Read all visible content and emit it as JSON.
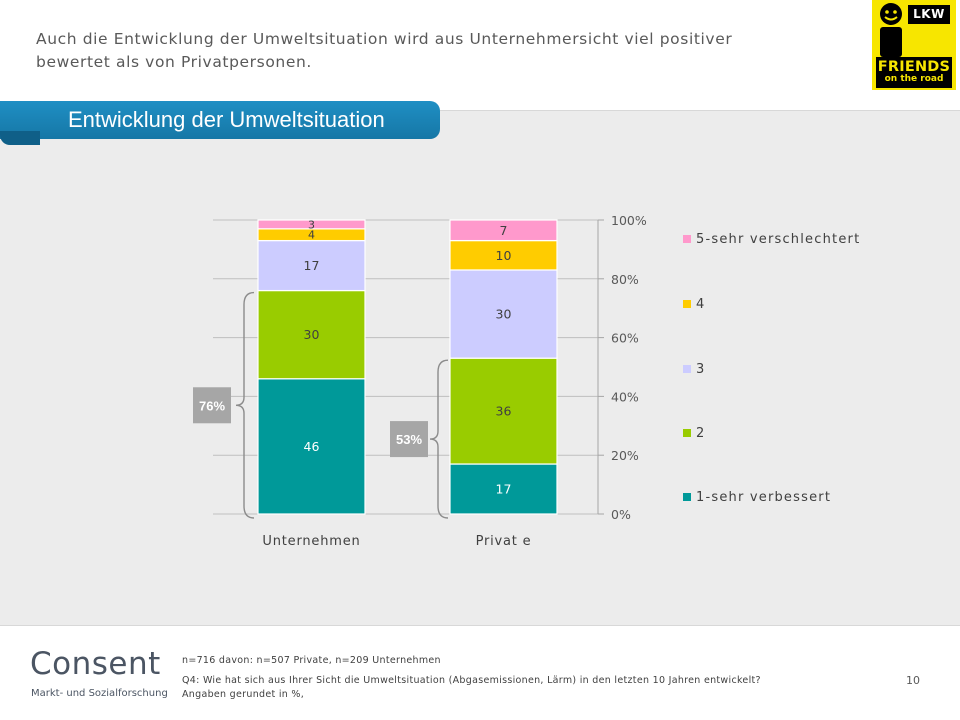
{
  "header": {
    "text": "Auch die Entwicklung der Umweltsituation wird aus Unternehmersicht viel positiver bewertet als von Privatpersonen."
  },
  "logo_lkw": {
    "top_label": "LKW",
    "friends": "FRIENDS",
    "on_the_road": "on the road",
    "color": "#f7e600"
  },
  "section": {
    "title": "Entwicklung der Umweltsituation"
  },
  "chart_data": {
    "type": "bar",
    "stacked": true,
    "categories": [
      "Unternehmen",
      "Privat e"
    ],
    "series": [
      {
        "name": "1-sehr verbessert",
        "color": "#009999",
        "values": [
          46,
          17
        ]
      },
      {
        "name": "2",
        "color": "#99cc00",
        "values": [
          30,
          36
        ]
      },
      {
        "name": "3",
        "color": "#ccccff",
        "values": [
          17,
          30
        ]
      },
      {
        "name": "4",
        "color": "#ffcc00",
        "values": [
          4,
          10
        ]
      },
      {
        "name": "5-sehr verschlechtert",
        "color": "#ff99cc",
        "values": [
          3,
          7
        ]
      }
    ],
    "y_ticks": [
      "0%",
      "20%",
      "40%",
      "60%",
      "80%",
      "100%"
    ],
    "ylim": [
      0,
      100
    ],
    "y_axis_position": "right",
    "legend_position": "right",
    "grid": true,
    "bracket_labels": [
      "76%",
      "53%"
    ]
  },
  "footer": {
    "logo_text": "Consent",
    "logo_subtitle": "Markt- und Sozialforschung",
    "sample": "n=716 davon: n=507 Private, n=209 Unternehmen",
    "question": "Q4: Wie hat sich aus Ihrer Sicht die Umweltsituation  (Abgasemissionen, Lärm) in den letzten 10 Jahren entwickelt? Angaben gerundet in %,",
    "page_number": "10"
  }
}
